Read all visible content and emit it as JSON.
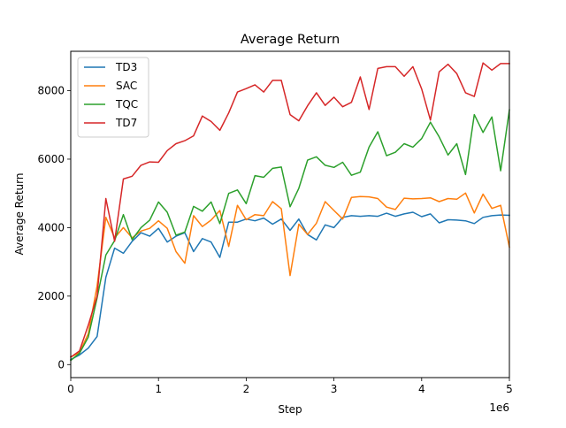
{
  "chart_data": {
    "type": "line",
    "title": "Average Return",
    "xlabel": "Step",
    "ylabel": "Average Return",
    "x_scale_label": "1e6",
    "xlim": [
      0,
      5
    ],
    "ylim": [
      -380,
      9150
    ],
    "x_ticks": [
      0,
      1,
      2,
      3,
      4,
      5
    ],
    "x_tick_labels": [
      "0",
      "1",
      "2",
      "3",
      "4",
      "5"
    ],
    "y_ticks": [
      0,
      2000,
      4000,
      6000,
      8000
    ],
    "y_tick_labels": [
      "0",
      "2000",
      "4000",
      "6000",
      "8000"
    ],
    "grid": false,
    "legend_position": "top-left",
    "x": [
      0,
      0.1,
      0.2,
      0.3,
      0.4,
      0.5,
      0.6,
      0.7,
      0.8,
      0.9,
      1.0,
      1.1,
      1.2,
      1.3,
      1.4,
      1.5,
      1.6,
      1.7,
      1.8,
      1.9,
      2.0,
      2.1,
      2.2,
      2.3,
      2.4,
      2.5,
      2.6,
      2.7,
      2.8,
      2.9,
      3.0,
      3.1,
      3.2,
      3.3,
      3.4,
      3.5,
      3.6,
      3.7,
      3.8,
      3.9,
      4.0,
      4.1,
      4.2,
      4.3,
      4.4,
      4.5,
      4.6,
      4.7,
      4.8,
      4.9,
      5.0
    ],
    "series": [
      {
        "name": "TD3",
        "color": "#1f77b4",
        "values": [
          150,
          280,
          480,
          820,
          2550,
          3400,
          3250,
          3600,
          3850,
          3750,
          3980,
          3580,
          3750,
          3850,
          3300,
          3680,
          3580,
          3130,
          4160,
          4160,
          4250,
          4200,
          4280,
          4100,
          4250,
          3920,
          4250,
          3800,
          3640,
          4080,
          4000,
          4300,
          4350,
          4330,
          4350,
          4330,
          4420,
          4330,
          4400,
          4450,
          4320,
          4400,
          4140,
          4230,
          4220,
          4200,
          4120,
          4300,
          4350,
          4370,
          4360
        ]
      },
      {
        "name": "SAC",
        "color": "#ff7f0e",
        "values": [
          220,
          350,
          900,
          2300,
          4300,
          3700,
          4000,
          3700,
          3900,
          3980,
          4200,
          3980,
          3300,
          2960,
          4350,
          4030,
          4220,
          4500,
          3450,
          4650,
          4230,
          4380,
          4350,
          4760,
          4550,
          2600,
          4100,
          3800,
          4130,
          4760,
          4500,
          4250,
          4880,
          4910,
          4900,
          4850,
          4600,
          4530,
          4860,
          4840,
          4850,
          4870,
          4760,
          4850,
          4830,
          5010,
          4430,
          4980,
          4560,
          4650,
          3430
        ]
      },
      {
        "name": "TQC",
        "color": "#2ca02c",
        "values": [
          120,
          330,
          800,
          1950,
          3200,
          3620,
          4380,
          3650,
          4000,
          4220,
          4750,
          4450,
          3780,
          3870,
          4620,
          4480,
          4750,
          4120,
          5000,
          5100,
          4700,
          5520,
          5470,
          5730,
          5770,
          4610,
          5150,
          5970,
          6070,
          5820,
          5760,
          5910,
          5530,
          5620,
          6350,
          6800,
          6100,
          6200,
          6450,
          6350,
          6600,
          7080,
          6650,
          6120,
          6450,
          5550,
          7300,
          6780,
          7230,
          5660,
          7440
        ]
      },
      {
        "name": "TD7",
        "color": "#d62728",
        "values": [
          220,
          400,
          1150,
          2000,
          4850,
          3600,
          5420,
          5500,
          5820,
          5920,
          5910,
          6250,
          6450,
          6540,
          6680,
          7260,
          7100,
          6840,
          7350,
          7960,
          8060,
          8170,
          7960,
          8300,
          8300,
          7300,
          7120,
          7560,
          7940,
          7570,
          7810,
          7530,
          7660,
          8400,
          7450,
          8650,
          8700,
          8700,
          8420,
          8700,
          8050,
          7140,
          8550,
          8770,
          8500,
          7940,
          7830,
          8810,
          8600,
          8790,
          8790
        ]
      }
    ]
  }
}
